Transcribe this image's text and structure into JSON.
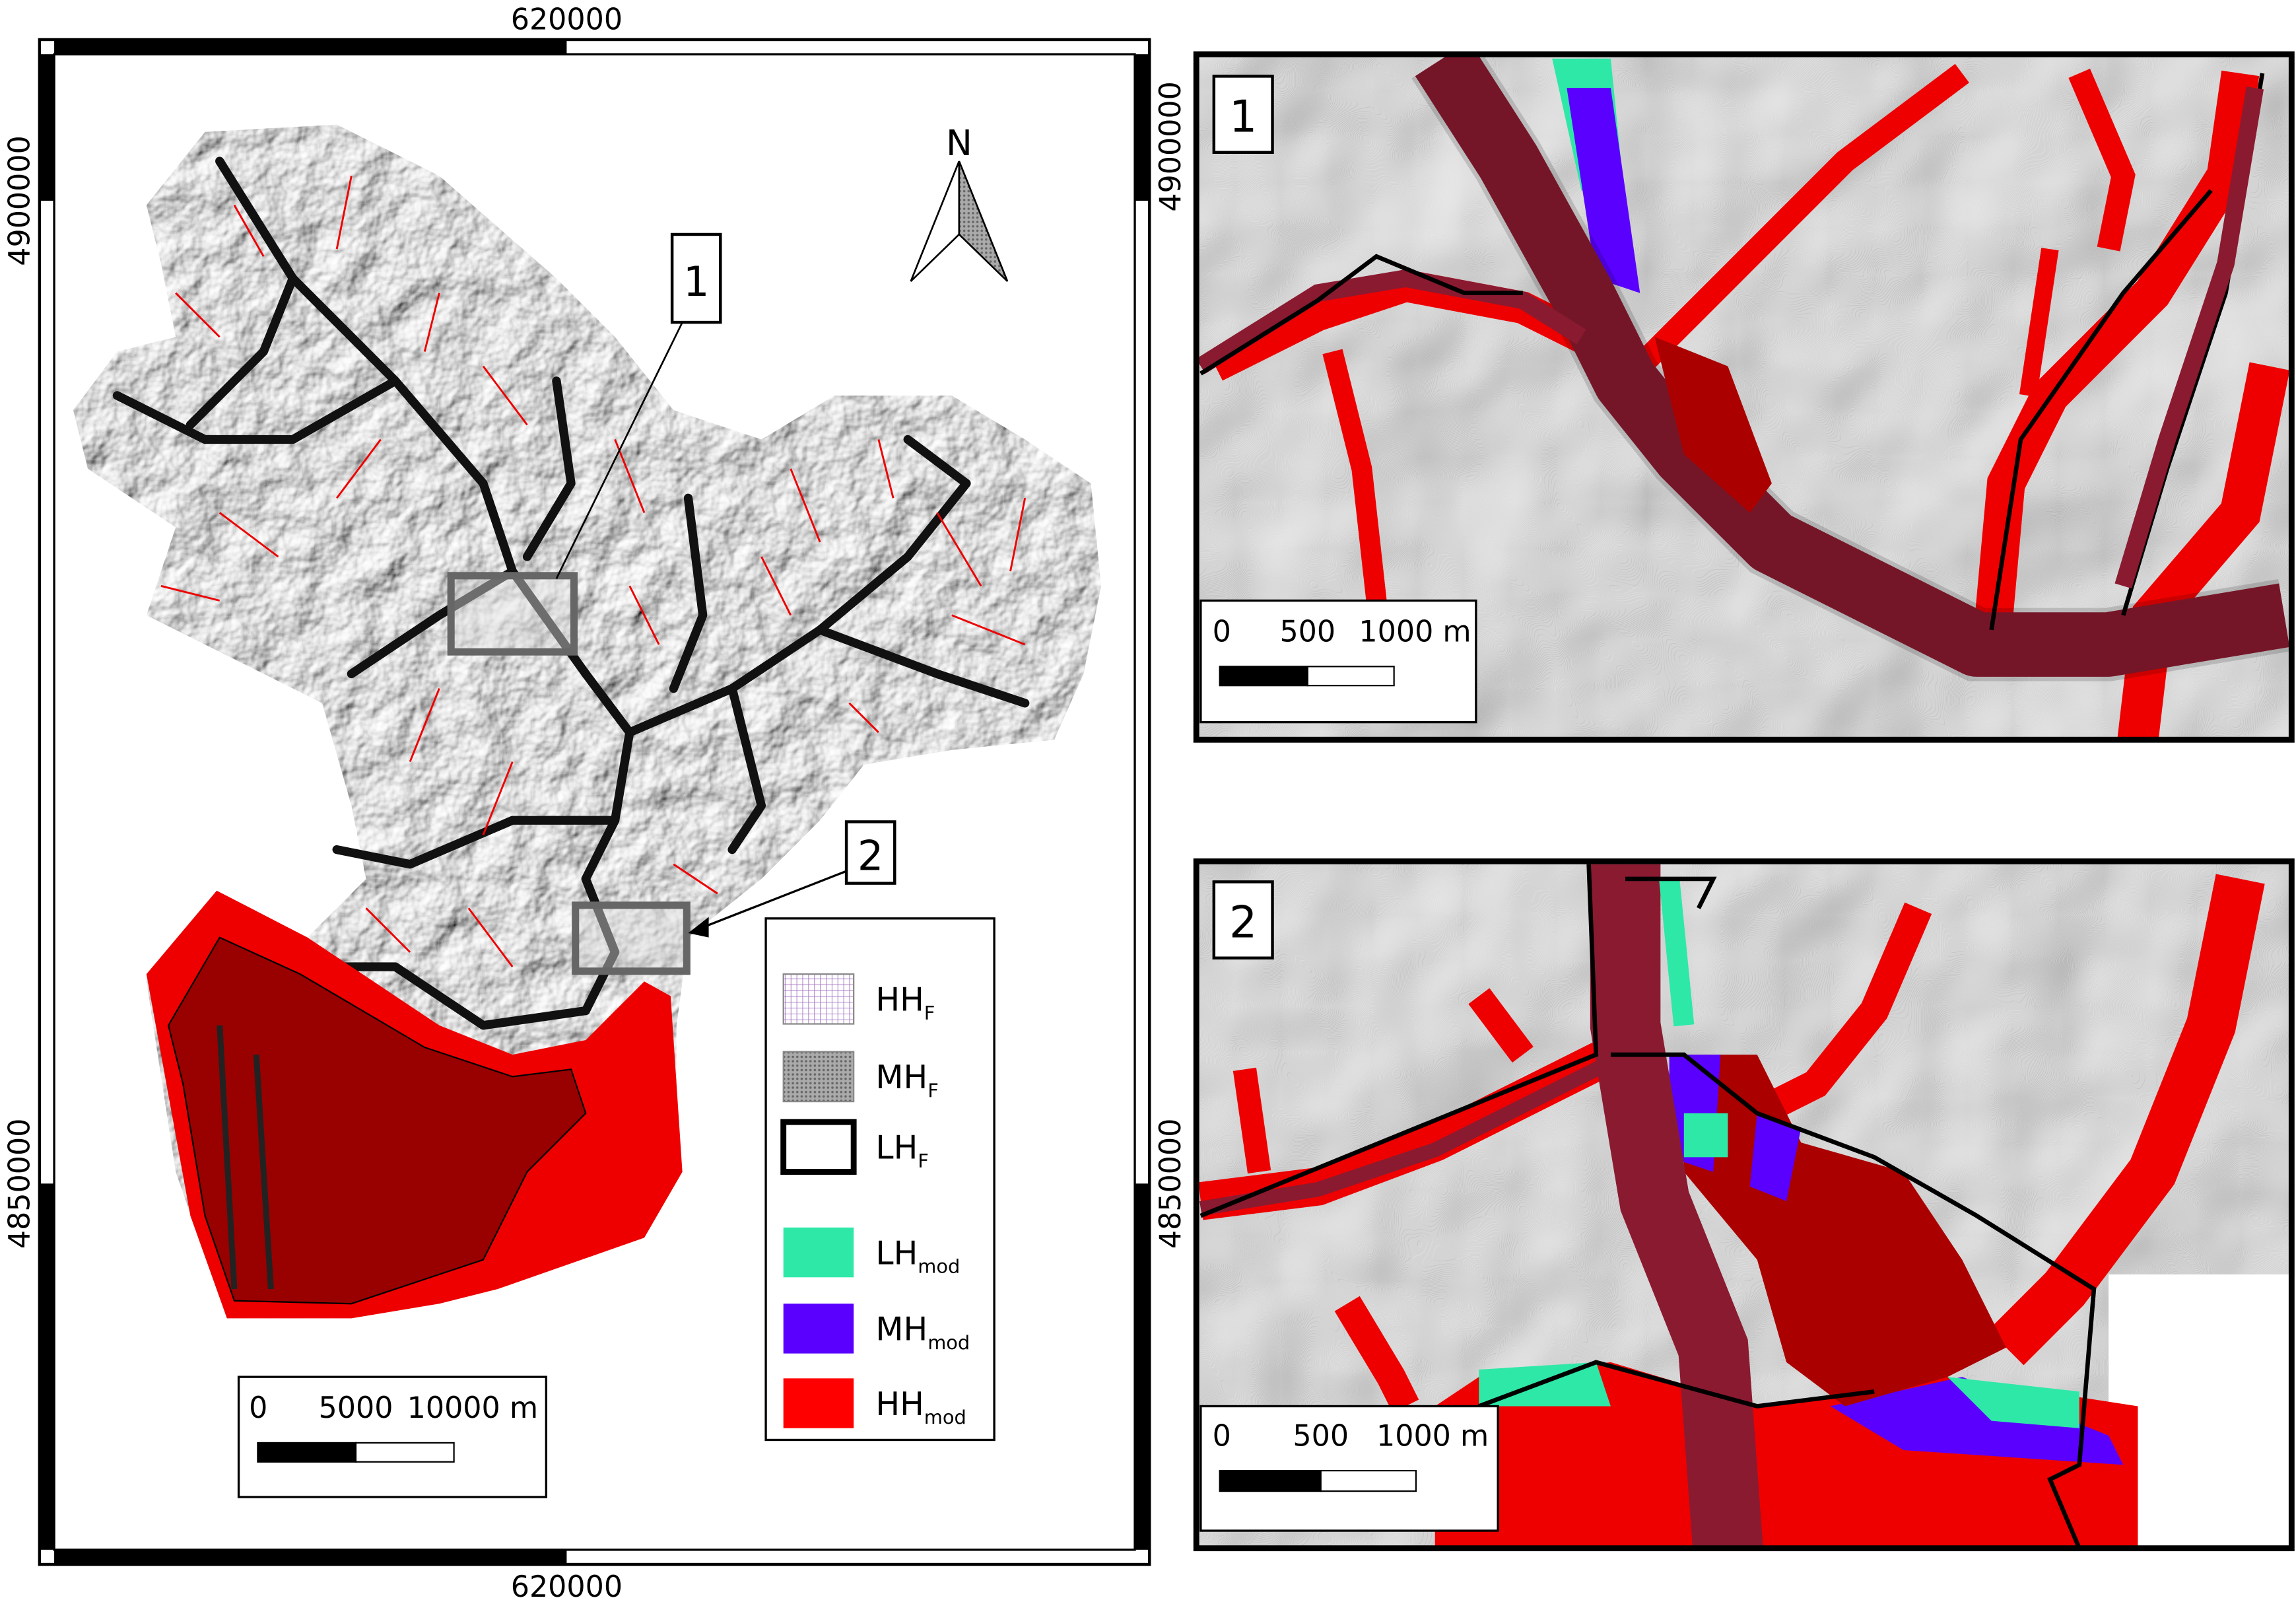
{
  "main_map": {
    "x_labels": [
      "620000",
      "620000"
    ],
    "y_labels": [
      "4900000",
      "4850000"
    ],
    "north": "N",
    "callouts": [
      "1",
      "2"
    ],
    "scale_bar": [
      "0",
      "5000",
      "10000 m"
    ]
  },
  "legend": {
    "items": [
      {
        "base": "HH",
        "sub": "F"
      },
      {
        "base": "MH",
        "sub": "F"
      },
      {
        "base": "LH",
        "sub": "F"
      },
      {
        "base": "LH",
        "sub": "mod"
      },
      {
        "base": "MH",
        "sub": "mod"
      },
      {
        "base": "HH",
        "sub": "mod"
      }
    ]
  },
  "insets": [
    {
      "label": "1",
      "y_label": "4900000",
      "scale_bar": [
        "0",
        "500",
        "1000 m"
      ]
    },
    {
      "label": "2",
      "y_label": "4850000",
      "scale_bar": [
        "0",
        "500",
        "1000 m"
      ]
    }
  ]
}
